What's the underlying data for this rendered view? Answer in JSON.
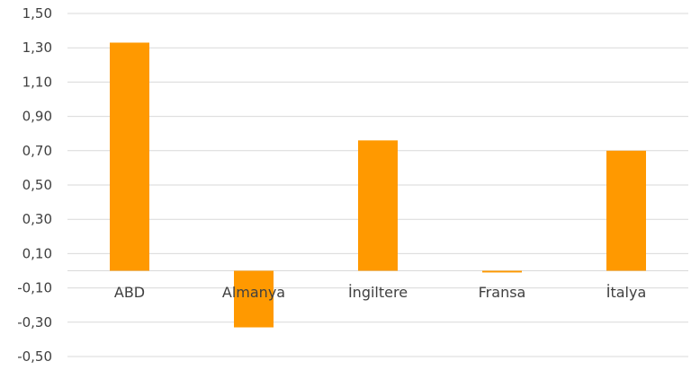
{
  "chart_data": {
    "type": "bar",
    "categories": [
      "ABD",
      "Almanya",
      "İngiltere",
      "Fransa",
      "İtalya"
    ],
    "values": [
      1.33,
      -0.33,
      0.76,
      -0.01,
      0.7
    ],
    "title": "",
    "xlabel": "",
    "ylabel": "",
    "ylim": [
      -0.5,
      1.5
    ],
    "yticks": [
      1.5,
      1.3,
      1.1,
      0.9,
      0.7,
      0.5,
      0.3,
      0.1,
      -0.1,
      -0.3,
      -0.5
    ],
    "ytick_labels": [
      "1,50",
      "1,30",
      "1,10",
      "0,90",
      "0,70",
      "0,50",
      "0,30",
      "0,10",
      "-0,10",
      "-0,30",
      "-0,50"
    ],
    "grid": true,
    "legend": "none",
    "colors": {
      "bar": "#ff9900",
      "grid": "#d9d9d9",
      "text": "#404040"
    }
  }
}
